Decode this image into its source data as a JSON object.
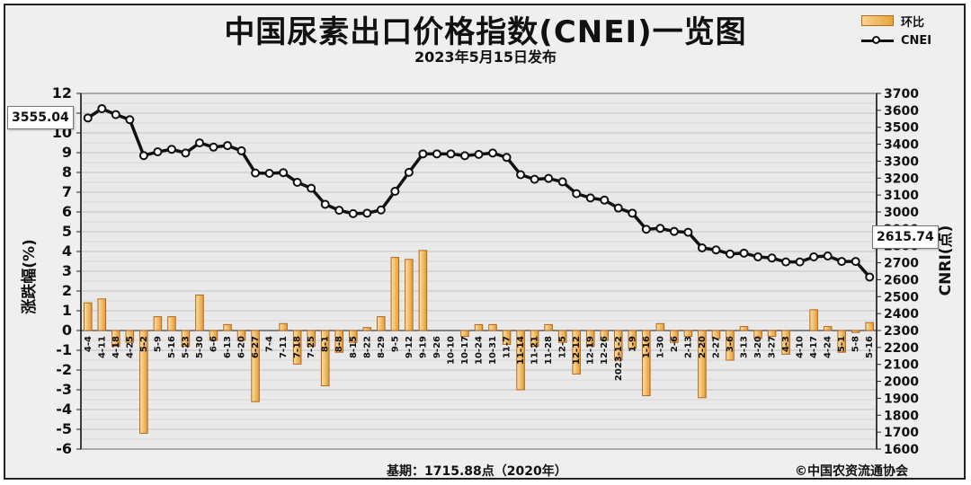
{
  "header": {
    "title": "中国尿素出口价格指数(CNEI)一览图",
    "subtitle": "2023年5月15日发布"
  },
  "legend": {
    "bar_label": "环比",
    "line_label": "CNEI"
  },
  "footer": {
    "base_note": "基期：1715.88点（2020年）",
    "copyright": "©中国农资流通协会"
  },
  "badges": {
    "first_value": "3555.04",
    "last_value": "2615.74"
  },
  "colors": {
    "bar_fill_light": "#fbe3a6",
    "bar_fill_dark": "#e39a33",
    "bar_stroke": "#b5651d",
    "line": "#111111",
    "grid": "#cfcfcf",
    "plot_bg": "#e9e9e9"
  },
  "chart_data": {
    "type": "bar+line",
    "xlabel": "",
    "ylabel_left": "涨跌幅(%)",
    "ylabel_right": "CNRI(点)",
    "ylim_left": [
      -6,
      12
    ],
    "yticks_left": [
      "12",
      "11",
      "10",
      "9",
      "8",
      "7",
      "6",
      "5",
      "4",
      "3",
      "2",
      "1",
      "0",
      "-1",
      "-2",
      "-3",
      "-4",
      "-5",
      "-6"
    ],
    "ylim_right": [
      1600,
      3700
    ],
    "yticks_right": [
      "3700",
      "3600",
      "3500",
      "3400",
      "3300",
      "3200",
      "3100",
      "3000",
      "2900",
      "2800",
      "2700",
      "2600",
      "2500",
      "2400",
      "2300",
      "2200",
      "2100",
      "2000",
      "1900",
      "1800",
      "1700",
      "1600"
    ],
    "grid": true,
    "legend_position": "top-right",
    "categories": [
      "4-4",
      "4-11",
      "4-18",
      "4-25",
      "5-2",
      "5-9",
      "5-16",
      "5-23",
      "5-30",
      "6-6",
      "6-13",
      "6-20",
      "6-27",
      "7-4",
      "7-11",
      "7-18",
      "7-25",
      "8-1",
      "8-8",
      "8-15",
      "8-22",
      "8-29",
      "9-5",
      "9-12",
      "9-19",
      "9-26",
      "10-10",
      "10-17",
      "10-24",
      "10-31",
      "11-7",
      "11-14",
      "11-21",
      "11-28",
      "12-5",
      "12-12",
      "12-19",
      "12-26",
      "2023-1-2",
      "1-9",
      "1-16",
      "1-30",
      "2-6",
      "2-13",
      "2-20",
      "2-27",
      "3-6",
      "3-13",
      "3-20",
      "3-27",
      "4-3",
      "4-10",
      "4-17",
      "4-24",
      "5-1",
      "5-8",
      "5-16"
    ],
    "series": [
      {
        "name": "环比",
        "type": "bar",
        "axis": "left",
        "values": [
          1.4,
          1.6,
          -0.8,
          -0.6,
          -5.2,
          0.7,
          0.7,
          -0.8,
          1.8,
          -0.5,
          0.3,
          -0.5,
          -3.6,
          0.0,
          0.35,
          -1.7,
          -0.8,
          -2.8,
          -1.1,
          -0.6,
          0.15,
          0.7,
          3.7,
          3.6,
          4.05,
          0.0,
          0.0,
          -0.3,
          0.3,
          0.3,
          -0.7,
          -3.0,
          -0.8,
          0.3,
          -0.6,
          -2.2,
          -0.8,
          -0.5,
          -1.5,
          -0.9,
          -3.3,
          0.35,
          -0.6,
          -0.3,
          -3.4,
          -0.4,
          -1.5,
          0.2,
          -0.4,
          -0.3,
          -1.2,
          0.0,
          1.05,
          0.2,
          -1.1,
          -0.1,
          0.4
        ]
      },
      {
        "name": "CNEI",
        "type": "line",
        "axis": "right",
        "values": [
          3555.04,
          3610,
          3575,
          3545,
          3333,
          3355,
          3370,
          3348,
          3408,
          3383,
          3392,
          3361,
          3230,
          3228,
          3232,
          3175,
          3140,
          3045,
          3010,
          2990,
          2993,
          3012,
          3122,
          3234,
          3343,
          3343,
          3343,
          3332,
          3340,
          3348,
          3322,
          3220,
          3193,
          3198,
          3178,
          3108,
          3083,
          3070,
          3023,
          2993,
          2898,
          2903,
          2885,
          2880,
          2788,
          2776,
          2752,
          2757,
          2735,
          2728,
          2705,
          2705,
          2735,
          2740,
          2708,
          2708,
          2615.74
        ]
      }
    ]
  }
}
